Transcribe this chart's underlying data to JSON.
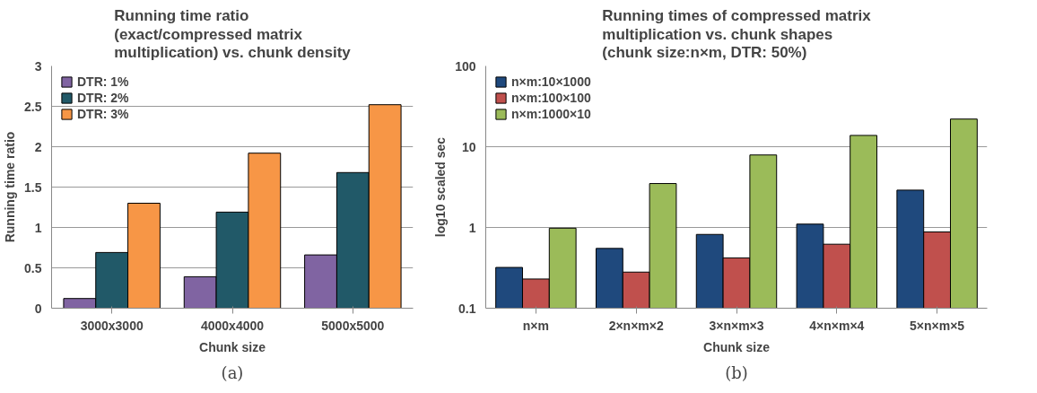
{
  "chart_data": [
    {
      "type": "bar",
      "title": "Running time ratio\n(exact/compressed matrix\nmultiplication) vs. chunk density",
      "xlabel": "Chunk size",
      "ylabel": "Running time ratio",
      "categories": [
        "3000x3000",
        "4000x4000",
        "5000x5000"
      ],
      "series": [
        {
          "name": "DTR: 1%",
          "color": "#8064a2",
          "values": [
            0.12,
            0.39,
            0.66
          ]
        },
        {
          "name": "DTR: 2%",
          "color": "#215968",
          "values": [
            0.69,
            1.19,
            1.68
          ]
        },
        {
          "name": "DTR: 3%",
          "color": "#f79646",
          "values": [
            1.3,
            1.92,
            2.52
          ]
        }
      ],
      "ylim": [
        0,
        3
      ],
      "yticks": [
        0,
        0.5,
        1,
        1.5,
        2,
        2.5,
        3
      ],
      "grid": "y",
      "legend": "top left",
      "annotations": [
        "(a)"
      ]
    },
    {
      "type": "bar",
      "title": "Running times of compressed matrix\nmultiplication vs. chunk shapes\n(chunk size:n×m,  DTR: 50%)",
      "xlabel": "Chunk size",
      "ylabel": "log10 scaled sec",
      "categories": [
        "n×m",
        "2×n×m×2",
        "3×n×m×3",
        "4×n×m×4",
        "5×n×m×5"
      ],
      "series": [
        {
          "name": "n×m:10×1000",
          "color": "#1f497d",
          "values": [
            0.32,
            0.55,
            0.82,
            1.1,
            2.9
          ]
        },
        {
          "name": "n×m:100×100",
          "color": "#c0504d",
          "values": [
            0.23,
            0.28,
            0.42,
            0.62,
            0.88
          ]
        },
        {
          "name": "n×m:1000×10",
          "color": "#9bbb59",
          "values": [
            0.98,
            3.5,
            7.9,
            13.8,
            22
          ]
        }
      ],
      "log": true,
      "ylim": [
        0.1,
        100
      ],
      "yticks": [
        0.1,
        1,
        10,
        100
      ],
      "grid": "y",
      "legend": "top left",
      "annotations": [
        "(b)"
      ]
    }
  ]
}
